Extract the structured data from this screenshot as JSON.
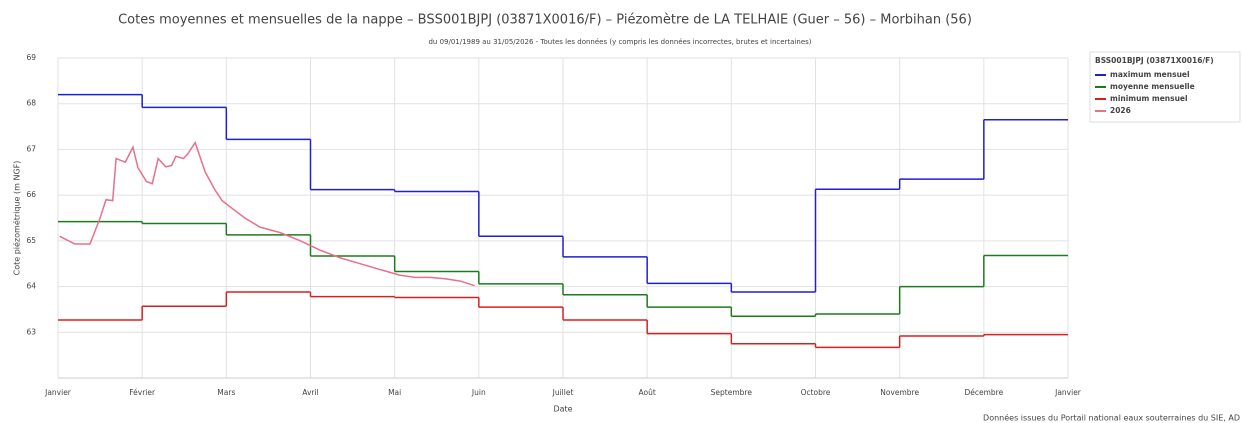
{
  "chart_data": {
    "type": "line",
    "title": "Cotes moyennes et mensuelles de la nappe – BSS001BJPJ (03871X0016/F) – Piézomètre de LA TELHAIE (Guer – 56) – Morbihan (56)",
    "subtitle": "du 09/01/1989 au 31/05/2026 - Toutes les données (y compris les données incorrectes, brutes et incertaines)",
    "x_label": "Date",
    "y_label": "Cote piézométrique (m NGF)",
    "legend_title": "BSS001BJPJ (03871X0016/F)",
    "footer": "Données issues du Portail national eaux souterraines du SIE, AD",
    "xlim": [
      0,
      12
    ],
    "xticks": [
      {
        "value": 0,
        "label": "Janvier"
      },
      {
        "value": 1,
        "label": "Février"
      },
      {
        "value": 2,
        "label": "Mars"
      },
      {
        "value": 3,
        "label": "Avril"
      },
      {
        "value": 4,
        "label": "Mai"
      },
      {
        "value": 5,
        "label": "Juin"
      },
      {
        "value": 6,
        "label": "Juillet"
      },
      {
        "value": 7,
        "label": "Août"
      },
      {
        "value": 8,
        "label": "Septembre"
      },
      {
        "value": 9,
        "label": "Octobre"
      },
      {
        "value": 10,
        "label": "Novembre"
      },
      {
        "value": 11,
        "label": "Décembre"
      },
      {
        "value": 12,
        "label": "Janvier"
      }
    ],
    "ylim": [
      62,
      69
    ],
    "yticks": [
      63,
      64,
      65,
      66,
      67,
      68,
      69
    ],
    "grid": true,
    "legend": "right",
    "series": [
      {
        "name": "maximum mensuel",
        "color": "#1f1fd6",
        "step": true,
        "values": [
          68.2,
          67.92,
          67.22,
          66.12,
          66.08,
          65.1,
          64.65,
          64.07,
          63.88,
          66.13,
          66.35,
          67.65
        ]
      },
      {
        "name": "moyenne mensuelle",
        "color": "#1e7a1e",
        "step": true,
        "values": [
          65.42,
          65.38,
          65.13,
          64.67,
          64.33,
          64.06,
          63.82,
          63.55,
          63.35,
          63.4,
          64.0,
          64.68
        ]
      },
      {
        "name": "minimum mensuel",
        "color": "#d62020",
        "step": true,
        "values": [
          63.27,
          63.57,
          63.88,
          63.78,
          63.76,
          63.55,
          63.27,
          62.97,
          62.75,
          62.67,
          62.92,
          62.95
        ]
      },
      {
        "name": "2026",
        "color": "#e8708a",
        "x": [
          0.02,
          0.2,
          0.38,
          0.5,
          0.57,
          0.65,
          0.69,
          0.8,
          0.89,
          0.95,
          1.05,
          1.12,
          1.19,
          1.28,
          1.35,
          1.4,
          1.49,
          1.54,
          1.63,
          1.75,
          1.87,
          1.95,
          2.04,
          2.22,
          2.4,
          2.64,
          2.88,
          3.11,
          3.35,
          3.59,
          3.83,
          4.06,
          4.24,
          4.42,
          4.6,
          4.78,
          4.95
        ],
        "values": [
          65.1,
          64.93,
          64.93,
          65.5,
          65.9,
          65.88,
          66.8,
          66.72,
          67.05,
          66.6,
          66.3,
          66.25,
          66.8,
          66.62,
          66.65,
          66.85,
          66.8,
          66.9,
          67.15,
          66.5,
          66.1,
          65.88,
          65.75,
          65.5,
          65.3,
          65.18,
          65.0,
          64.8,
          64.63,
          64.5,
          64.37,
          64.25,
          64.2,
          64.2,
          64.17,
          64.12,
          64.02
        ]
      }
    ]
  }
}
